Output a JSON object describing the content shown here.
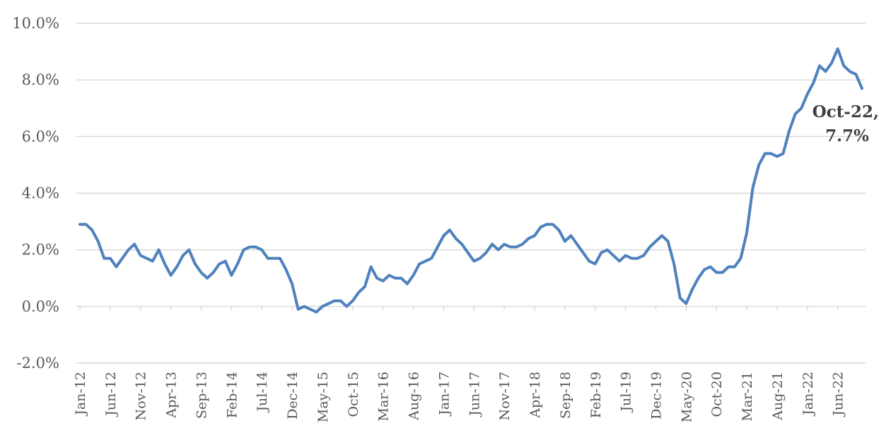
{
  "colors": {
    "series": "#4f81bd",
    "grid": "#d9d9d9",
    "text": "#595959"
  },
  "chart_data": {
    "type": "line",
    "title": "",
    "xlabel": "",
    "ylabel": "",
    "ylim": [
      -2.0,
      10.0
    ],
    "yticks": [
      {
        "value": -2.0,
        "label": "-2.0%"
      },
      {
        "value": 0.0,
        "label": "0.0%"
      },
      {
        "value": 2.0,
        "label": "2.0%"
      },
      {
        "value": 4.0,
        "label": "4.0%"
      },
      {
        "value": 6.0,
        "label": "6.0%"
      },
      {
        "value": 8.0,
        "label": "8.0%"
      },
      {
        "value": 10.0,
        "label": "10.0%"
      }
    ],
    "grid": true,
    "legend": "none",
    "x_start": "Jan-12",
    "x_end": "Oct-22",
    "x_tick_labels": [
      "Jan-12",
      "Jun-12",
      "Nov-12",
      "Apr-13",
      "Sep-13",
      "Feb-14",
      "Jul-14",
      "Dec-14",
      "May-15",
      "Oct-15",
      "Mar-16",
      "Aug-16",
      "Jan-17",
      "Jun-17",
      "Nov-17",
      "Apr-18",
      "Sep-18",
      "Feb-19",
      "Jul-19",
      "Dec-19",
      "May-20",
      "Oct-20",
      "Mar-21",
      "Aug-21",
      "Jan-22",
      "Jun-22"
    ],
    "series": [
      {
        "values": [
          2.9,
          2.9,
          2.7,
          2.3,
          1.7,
          1.7,
          1.4,
          1.7,
          2.0,
          2.2,
          1.8,
          1.7,
          1.6,
          2.0,
          1.5,
          1.1,
          1.4,
          1.8,
          2.0,
          1.5,
          1.2,
          1.0,
          1.2,
          1.5,
          1.6,
          1.1,
          1.5,
          2.0,
          2.1,
          2.1,
          2.0,
          1.7,
          1.7,
          1.7,
          1.3,
          0.8,
          -0.1,
          0.0,
          -0.1,
          -0.2,
          0.0,
          0.1,
          0.2,
          0.2,
          0.0,
          0.2,
          0.5,
          0.7,
          1.4,
          1.0,
          0.9,
          1.1,
          1.0,
          1.0,
          0.8,
          1.1,
          1.5,
          1.6,
          1.7,
          2.1,
          2.5,
          2.7,
          2.4,
          2.2,
          1.9,
          1.6,
          1.7,
          1.9,
          2.2,
          2.0,
          2.2,
          2.1,
          2.1,
          2.2,
          2.4,
          2.5,
          2.8,
          2.9,
          2.9,
          2.7,
          2.3,
          2.5,
          2.2,
          1.9,
          1.6,
          1.5,
          1.9,
          2.0,
          1.8,
          1.6,
          1.8,
          1.7,
          1.7,
          1.8,
          2.1,
          2.3,
          2.5,
          2.3,
          1.5,
          0.3,
          0.1,
          0.6,
          1.0,
          1.3,
          1.4,
          1.2,
          1.2,
          1.4,
          1.4,
          1.7,
          2.6,
          4.2,
          5.0,
          5.4,
          5.4,
          5.3,
          5.4,
          6.2,
          6.8,
          7.0,
          7.5,
          7.9,
          8.5,
          8.3,
          8.6,
          9.1,
          8.5,
          8.3,
          8.2,
          7.7
        ]
      }
    ],
    "annotation": {
      "line1": "Oct-22,",
      "line2": "7.7%"
    }
  }
}
